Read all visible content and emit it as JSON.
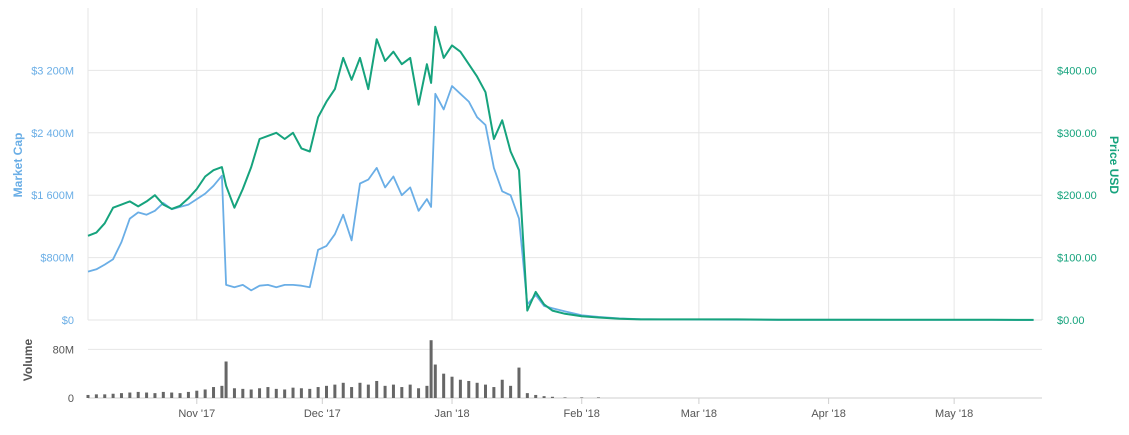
{
  "chart_data": {
    "type": "line",
    "x_dates": [
      "2017-10-06",
      "2017-10-08",
      "2017-10-10",
      "2017-10-12",
      "2017-10-14",
      "2017-10-16",
      "2017-10-18",
      "2017-10-20",
      "2017-10-22",
      "2017-10-24",
      "2017-10-26",
      "2017-10-28",
      "2017-10-30",
      "2017-11-01",
      "2017-11-03",
      "2017-11-05",
      "2017-11-07",
      "2017-11-08",
      "2017-11-10",
      "2017-11-12",
      "2017-11-14",
      "2017-11-16",
      "2017-11-18",
      "2017-11-20",
      "2017-11-22",
      "2017-11-24",
      "2017-11-26",
      "2017-11-28",
      "2017-11-30",
      "2017-12-02",
      "2017-12-04",
      "2017-12-06",
      "2017-12-08",
      "2017-12-10",
      "2017-12-12",
      "2017-12-14",
      "2017-12-16",
      "2017-12-18",
      "2017-12-20",
      "2017-12-22",
      "2017-12-24",
      "2017-12-26",
      "2017-12-27",
      "2017-12-28",
      "2017-12-30",
      "2018-01-01",
      "2018-01-03",
      "2018-01-05",
      "2018-01-07",
      "2018-01-09",
      "2018-01-11",
      "2018-01-13",
      "2018-01-15",
      "2018-01-17",
      "2018-01-19",
      "2018-01-21",
      "2018-01-23",
      "2018-01-25",
      "2018-01-28",
      "2018-02-01",
      "2018-02-05",
      "2018-02-10",
      "2018-02-15",
      "2018-02-20",
      "2018-03-01",
      "2018-03-10",
      "2018-03-20",
      "2018-04-01",
      "2018-04-10",
      "2018-04-20",
      "2018-05-01",
      "2018-05-10",
      "2018-05-20"
    ],
    "series": [
      {
        "name": "Market Cap",
        "axis": "left",
        "color": "#6aaee6",
        "values": [
          620,
          650,
          710,
          780,
          1000,
          1300,
          1380,
          1350,
          1400,
          1500,
          1420,
          1450,
          1480,
          1550,
          1620,
          1720,
          1850,
          450,
          420,
          450,
          380,
          440,
          450,
          420,
          450,
          450,
          440,
          420,
          900,
          950,
          1100,
          1350,
          1020,
          1750,
          1800,
          1950,
          1700,
          1840,
          1600,
          1700,
          1400,
          1550,
          1450,
          2900,
          2700,
          3000,
          2900,
          2800,
          2600,
          2500,
          1950,
          1650,
          1600,
          1300,
          200,
          320,
          180,
          150,
          110,
          60,
          40,
          20,
          10,
          8,
          5,
          4,
          3,
          2,
          2,
          1,
          1,
          1,
          0
        ]
      },
      {
        "name": "Price USD",
        "axis": "right",
        "color": "#16a37d",
        "values": [
          135,
          140,
          155,
          180,
          185,
          190,
          182,
          190,
          200,
          185,
          178,
          183,
          195,
          210,
          230,
          240,
          245,
          215,
          180,
          210,
          245,
          290,
          295,
          300,
          290,
          300,
          275,
          270,
          325,
          350,
          370,
          420,
          385,
          420,
          370,
          450,
          415,
          430,
          410,
          420,
          345,
          410,
          380,
          470,
          420,
          440,
          430,
          410,
          390,
          365,
          290,
          320,
          270,
          240,
          15,
          45,
          25,
          15,
          10,
          6,
          4,
          2,
          1,
          1,
          1,
          1,
          0.5,
          0.5,
          0.4,
          0.3,
          0.3,
          0.3,
          0.2
        ]
      },
      {
        "name": "Volume",
        "axis": "volume",
        "values": [
          5,
          6,
          6,
          7,
          8,
          9,
          10,
          9,
          8,
          10,
          9,
          8,
          10,
          12,
          14,
          18,
          20,
          60,
          16,
          15,
          14,
          16,
          18,
          15,
          14,
          17,
          16,
          15,
          18,
          20,
          22,
          25,
          18,
          25,
          22,
          28,
          20,
          22,
          18,
          22,
          16,
          20,
          95,
          55,
          40,
          35,
          30,
          28,
          25,
          22,
          18,
          30,
          20,
          50,
          8,
          5,
          3,
          2,
          1,
          1,
          1,
          0,
          0,
          0,
          0,
          0,
          0,
          0,
          0,
          0,
          0,
          0,
          0
        ]
      }
    ],
    "ylabel_left": "Market Cap",
    "ylabel_right": "Price USD",
    "ylabel_volume": "Volume",
    "y_ticks_left": [
      "$0",
      "$800M",
      "$1 600M",
      "$2 400M",
      "$3 200M"
    ],
    "y_ticks_right": [
      "$0.00",
      "$100.00",
      "$200.00",
      "$300.00",
      "$400.00"
    ],
    "y_ticks_volume": [
      "0",
      "80M"
    ],
    "x_ticks": [
      "Nov '17",
      "Dec '17",
      "Jan '18",
      "Feb '18",
      "Mar '18",
      "Apr '18",
      "May '18"
    ],
    "ylim_left": [
      0,
      4000
    ],
    "ylim_right": [
      0,
      500
    ],
    "ylim_volume": [
      0,
      120
    ],
    "grid": true
  }
}
